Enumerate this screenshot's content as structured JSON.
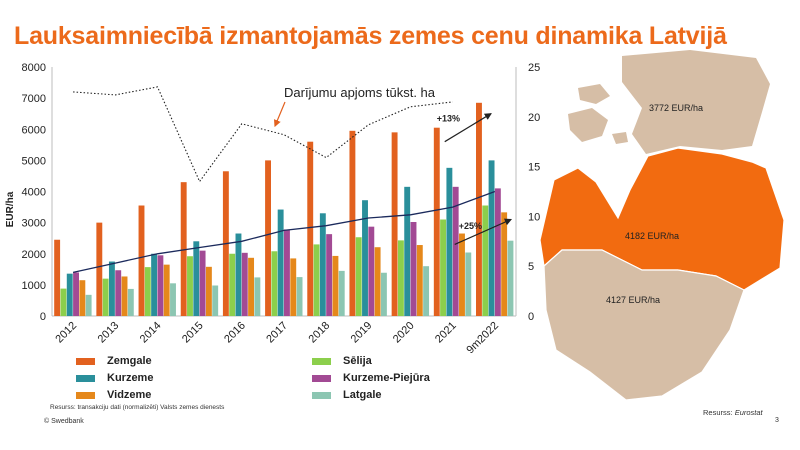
{
  "title": "Lauksaimniecībā izmantojamās zemes cenu dinamika Latvijā",
  "chart_data": {
    "type": "bar",
    "categories": [
      "2012",
      "2013",
      "2014",
      "2015",
      "2016",
      "2017",
      "2018",
      "2019",
      "2020",
      "2021",
      "9m2022"
    ],
    "ylabel": "EUR/ha",
    "ylim": [
      0,
      8000
    ],
    "yticks": [
      "0",
      "1000",
      "2000",
      "3000",
      "4000",
      "5000",
      "6000",
      "7000",
      "8000"
    ],
    "y2lim": [
      0,
      25
    ],
    "y2ticks": [
      "0",
      "5",
      "10",
      "15",
      "20",
      "25"
    ],
    "series": [
      {
        "name": "Zemgale",
        "color": "#e2611f",
        "values": [
          2450,
          3000,
          3550,
          4300,
          4650,
          5000,
          5600,
          5950,
          5900,
          6050,
          6850
        ]
      },
      {
        "name": "Sēlija",
        "color": "#8ccf4c",
        "values": [
          880,
          1200,
          1570,
          1920,
          2000,
          2080,
          2300,
          2530,
          2430,
          3100,
          3550
        ]
      },
      {
        "name": "Kurzeme",
        "color": "#2a8f9b",
        "values": [
          1360,
          1750,
          2000,
          2400,
          2650,
          3420,
          3300,
          3720,
          4150,
          4760,
          5000
        ]
      },
      {
        "name": "Kurzeme-Piejūra",
        "color": "#a24a94",
        "values": [
          1400,
          1470,
          1950,
          2100,
          2030,
          2780,
          2630,
          2870,
          3020,
          4150,
          4100
        ]
      },
      {
        "name": "Vidzeme",
        "color": "#e5881b",
        "values": [
          1150,
          1270,
          1650,
          1580,
          1870,
          1850,
          1930,
          2210,
          2280,
          2650,
          3330
        ]
      },
      {
        "name": "Latgale",
        "color": "#8cc6b2",
        "values": [
          680,
          870,
          1050,
          980,
          1240,
          1250,
          1450,
          1390,
          1600,
          2040,
          2420
        ]
      }
    ],
    "avg_line": {
      "color": "#1b2a5c",
      "values": [
        1400,
        1700,
        2000,
        2200,
        2400,
        2750,
        2900,
        3150,
        3250,
        3500,
        4000
      ]
    },
    "volume_line": {
      "axis": "secondary",
      "values": [
        22.5,
        22.2,
        23,
        13.5,
        19.3,
        18.2,
        15.9,
        19.2,
        21,
        21.5,
        null
      ]
    },
    "annotations": {
      "volume_label": "Darījumu apjoms tūkst. ha",
      "growth_top": "+13%",
      "growth_bottom": "+25%"
    }
  },
  "colors": {
    "accent": "#ec6a1b",
    "map_light": "#d6bea6",
    "map_highlight": "#f26b10"
  },
  "map": {
    "north_label": "3772 EUR/ha",
    "middle_label": "4182 EUR/ha",
    "south_label": "4127 EUR/ha"
  },
  "footer": {
    "source_left": "Resurss: transakciju dati (normalizēti) Valsts zemes dienests",
    "brand": "© Swedbank",
    "source_right_prefix": "Resurss: ",
    "source_right_name": "Eurostat",
    "page": "3"
  }
}
